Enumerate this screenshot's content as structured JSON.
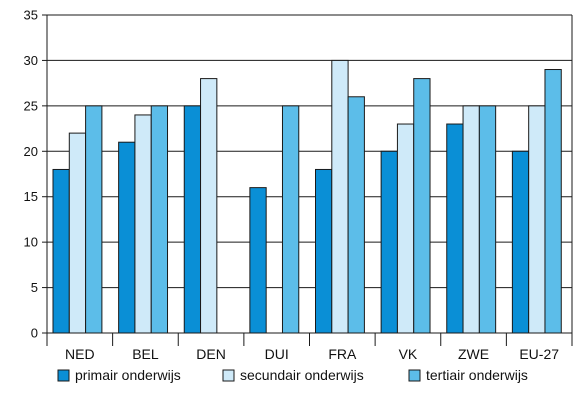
{
  "chart_data": {
    "type": "bar",
    "categories": [
      "NED",
      "BEL",
      "DEN",
      "DUI",
      "FRA",
      "VK",
      "ZWE",
      "EU-27"
    ],
    "series": [
      {
        "name": "primair onderwijs",
        "color": "#0a8fd6",
        "values": [
          18,
          21,
          25,
          16,
          18,
          20,
          23,
          20
        ]
      },
      {
        "name": "secundair onderwijs",
        "color": "#cfeaf9",
        "values": [
          22,
          24,
          28,
          null,
          30,
          23,
          25,
          25
        ]
      },
      {
        "name": "tertiair onderwijs",
        "color": "#5cbde9",
        "values": [
          25,
          25,
          null,
          25,
          26,
          28,
          25,
          29
        ]
      }
    ],
    "ylim": [
      0,
      35
    ],
    "yticks": [
      0,
      5,
      10,
      15,
      20,
      25,
      30,
      35
    ],
    "grid": true,
    "legend_position": "bottom",
    "title": "",
    "xlabel": "",
    "ylabel": ""
  }
}
